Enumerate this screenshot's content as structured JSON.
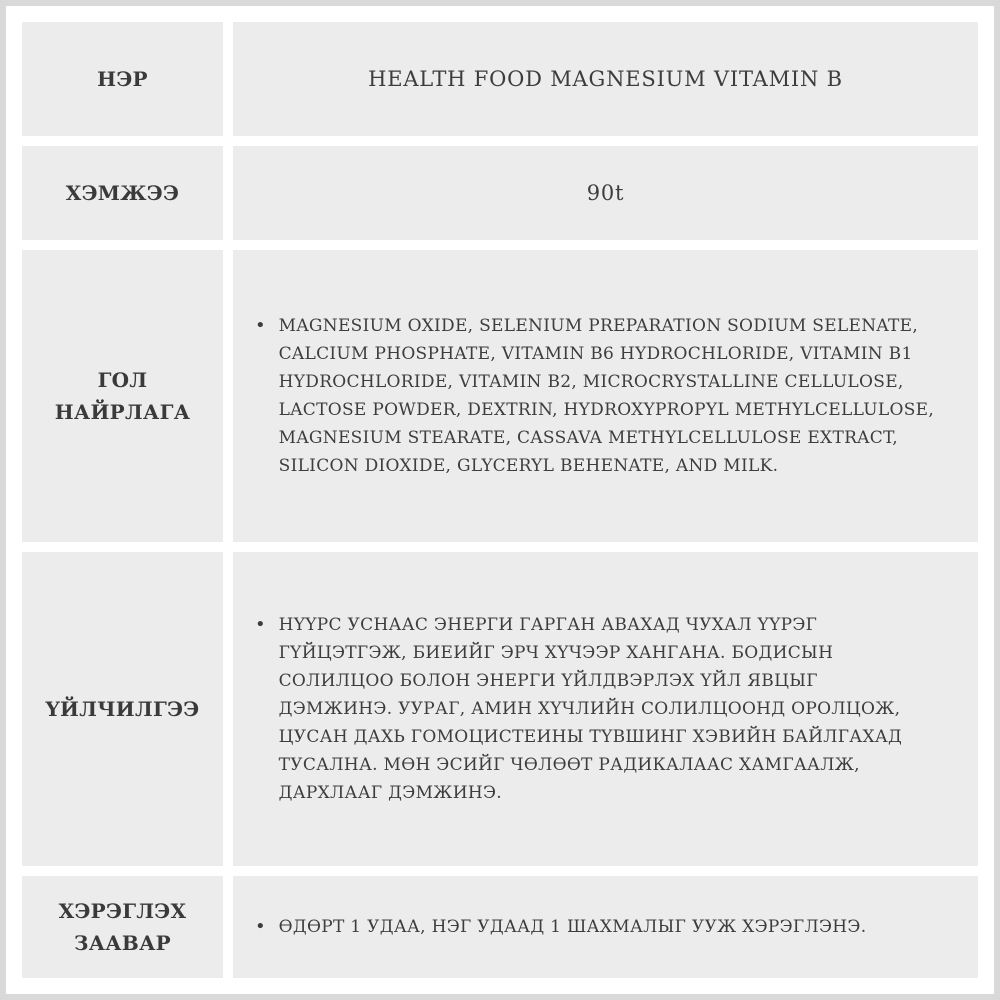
{
  "document": {
    "bullet_char": "•",
    "rows": [
      {
        "label": "НЭР",
        "value": "HEALTH FOOD MAGNESIUM VITAMIN B"
      },
      {
        "label": "ХЭМЖЭЭ",
        "value": "90t"
      },
      {
        "label": "ГОЛ НАЙРЛАГА",
        "value": "MAGNESIUM OXIDE, SELENIUM PREPARATION SODIUM SELENATE,\nCALCIUM PHOSPHATE, VITAMIN B6 HYDROCHLORIDE, VITAMIN B1\nHYDROCHLORIDE, VITAMIN B2, MICROCRYSTALLINE CELLULOSE,\nLACTOSE POWDER, DEXTRIN, HYDROXYPROPYL METHYLCELLULOSE,\nMAGNESIUM STEARATE, CASSAVA METHYLCELLULOSE EXTRACT,\nSILICON DIOXIDE, GLYCERYL BEHENATE, AND MILK."
      },
      {
        "label": "ҮЙЛЧИЛГЭЭ",
        "value": "НҮҮРС УСНААС ЭНЕРГИ ГАРГАН АВАХАД ЧУХАЛ ҮҮРЭГ\nГҮЙЦЭТГЭЖ, БИЕИЙГ ЭРЧ ХҮЧЭЭР ХАНГАНА. БОДИСЫН\nСОЛИЛЦОО БОЛОН ЭНЕРГИ ҮЙЛДВЭРЛЭХ ҮЙЛ ЯВЦЫГ\nДЭМЖИНЭ. УУРАГ, АМИН ХҮЧЛИЙН СОЛИЛЦООНД ОРОЛЦОЖ,\nЦУСАН ДАХЬ ГОМОЦИСТЕИНЫ ТҮВШИНГ ХЭВИЙН БАЙЛГАХАД\nТУСАЛНА. МӨН ЭСИЙГ ЧӨЛӨӨТ РАДИКАЛААС ХАМГААЛЖ,\nДАРХЛААГ ДЭМЖИНЭ."
      },
      {
        "label": "ХЭРЭГЛЭХ ЗААВАР",
        "value": "ӨДӨРТ 1 УДАА, НЭГ УДААД 1 ШАХМАЛЫГ УУЖ ХЭРЭГЛЭНЭ."
      }
    ]
  },
  "colors": {
    "page_background": "#d9d9d9",
    "frame_background": "#ffffff",
    "cell_background": "#ececec",
    "text": "#3d3d3d"
  }
}
